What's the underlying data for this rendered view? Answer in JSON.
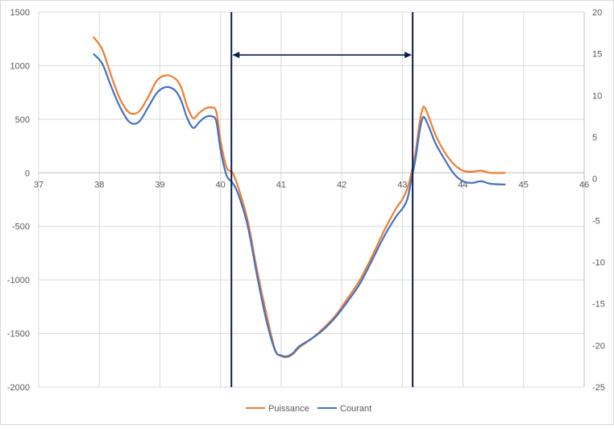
{
  "chart_data": {
    "type": "line",
    "title": "",
    "xlabel": "",
    "ylabel": "",
    "y2label": "",
    "grid": true,
    "legend_position": "bottom",
    "xlim": [
      37,
      46
    ],
    "ylim": [
      -2000,
      1500
    ],
    "y2lim": [
      -25,
      20
    ],
    "x_ticks": [
      "37",
      "38",
      "39",
      "40",
      "41",
      "42",
      "43",
      "44",
      "45",
      "46"
    ],
    "y_ticks": [
      "1500",
      "1000",
      "500",
      "0",
      "-500",
      "-1000",
      "-1500",
      "-2000"
    ],
    "y2_ticks": [
      "20",
      "15",
      "10",
      "5",
      "0",
      "-5",
      "-10",
      "-15",
      "-20",
      "-25"
    ],
    "series": [
      {
        "name": "Puissance",
        "axis": "left",
        "color": "#ED7D31",
        "points": [
          [
            37.9,
            1270
          ],
          [
            38.05,
            1150
          ],
          [
            38.2,
            900
          ],
          [
            38.35,
            680
          ],
          [
            38.5,
            560
          ],
          [
            38.65,
            570
          ],
          [
            38.8,
            700
          ],
          [
            38.95,
            860
          ],
          [
            39.1,
            910
          ],
          [
            39.25,
            880
          ],
          [
            39.35,
            800
          ],
          [
            39.45,
            620
          ],
          [
            39.55,
            510
          ],
          [
            39.65,
            560
          ],
          [
            39.75,
            600
          ],
          [
            39.85,
            610
          ],
          [
            39.93,
            570
          ],
          [
            40.0,
            300
          ],
          [
            40.1,
            50
          ],
          [
            40.2,
            0
          ],
          [
            40.3,
            -150
          ],
          [
            40.45,
            -450
          ],
          [
            40.6,
            -900
          ],
          [
            40.75,
            -1300
          ],
          [
            40.9,
            -1650
          ],
          [
            41.0,
            -1710
          ],
          [
            41.1,
            -1720
          ],
          [
            41.2,
            -1690
          ],
          [
            41.3,
            -1630
          ],
          [
            41.5,
            -1550
          ],
          [
            41.7,
            -1450
          ],
          [
            41.9,
            -1330
          ],
          [
            42.1,
            -1170
          ],
          [
            42.3,
            -1000
          ],
          [
            42.5,
            -780
          ],
          [
            42.7,
            -540
          ],
          [
            42.9,
            -330
          ],
          [
            43.0,
            -250
          ],
          [
            43.08,
            -150
          ],
          [
            43.15,
            0
          ],
          [
            43.22,
            200
          ],
          [
            43.28,
            450
          ],
          [
            43.33,
            590
          ],
          [
            43.37,
            610
          ],
          [
            43.45,
            500
          ],
          [
            43.55,
            350
          ],
          [
            43.7,
            190
          ],
          [
            43.85,
            80
          ],
          [
            44.0,
            20
          ],
          [
            44.15,
            10
          ],
          [
            44.3,
            20
          ],
          [
            44.45,
            0
          ],
          [
            44.7,
            0
          ]
        ]
      },
      {
        "name": "Courant",
        "axis": "right",
        "color": "#4472C4",
        "points": [
          [
            37.9,
            15
          ],
          [
            38.05,
            13.8
          ],
          [
            38.2,
            11
          ],
          [
            38.35,
            8.5
          ],
          [
            38.5,
            6.8
          ],
          [
            38.65,
            6.8
          ],
          [
            38.8,
            8.5
          ],
          [
            38.95,
            10.3
          ],
          [
            39.1,
            11
          ],
          [
            39.25,
            10.6
          ],
          [
            39.35,
            9.4
          ],
          [
            39.45,
            7.3
          ],
          [
            39.55,
            6.1
          ],
          [
            39.65,
            6.8
          ],
          [
            39.75,
            7.4
          ],
          [
            39.85,
            7.5
          ],
          [
            39.93,
            6.9
          ],
          [
            40.0,
            3.5
          ],
          [
            40.1,
            0.4
          ],
          [
            40.2,
            -0.5
          ],
          [
            40.3,
            -2
          ],
          [
            40.45,
            -5.7
          ],
          [
            40.6,
            -11.5
          ],
          [
            40.75,
            -16.8
          ],
          [
            40.9,
            -20.6
          ],
          [
            41.0,
            -21.2
          ],
          [
            41.1,
            -21.3
          ],
          [
            41.2,
            -20.9
          ],
          [
            41.3,
            -20.1
          ],
          [
            41.5,
            -19.2
          ],
          [
            41.7,
            -18.1
          ],
          [
            41.9,
            -16.6
          ],
          [
            42.1,
            -14.7
          ],
          [
            42.3,
            -12.6
          ],
          [
            42.5,
            -9.8
          ],
          [
            42.7,
            -6.9
          ],
          [
            42.9,
            -4.5
          ],
          [
            43.0,
            -3.6
          ],
          [
            43.08,
            -2.5
          ],
          [
            43.15,
            -0.1
          ],
          [
            43.22,
            2.5
          ],
          [
            43.28,
            5.5
          ],
          [
            43.33,
            7.2
          ],
          [
            43.37,
            7.3
          ],
          [
            43.45,
            6
          ],
          [
            43.55,
            4.2
          ],
          [
            43.7,
            2.3
          ],
          [
            43.85,
            0.6
          ],
          [
            44.0,
            -0.3
          ],
          [
            44.15,
            -0.5
          ],
          [
            44.3,
            -0.3
          ],
          [
            44.45,
            -0.6
          ],
          [
            44.7,
            -0.7
          ]
        ]
      }
    ],
    "markers": [
      {
        "type": "vline",
        "x": 40.18,
        "color": "#0B1F4D"
      },
      {
        "type": "vline",
        "x": 43.17,
        "color": "#0B1F4D"
      },
      {
        "type": "double-arrow",
        "from": 40.18,
        "to": 43.17,
        "y": 1100,
        "color": "#0B1F4D"
      }
    ]
  }
}
